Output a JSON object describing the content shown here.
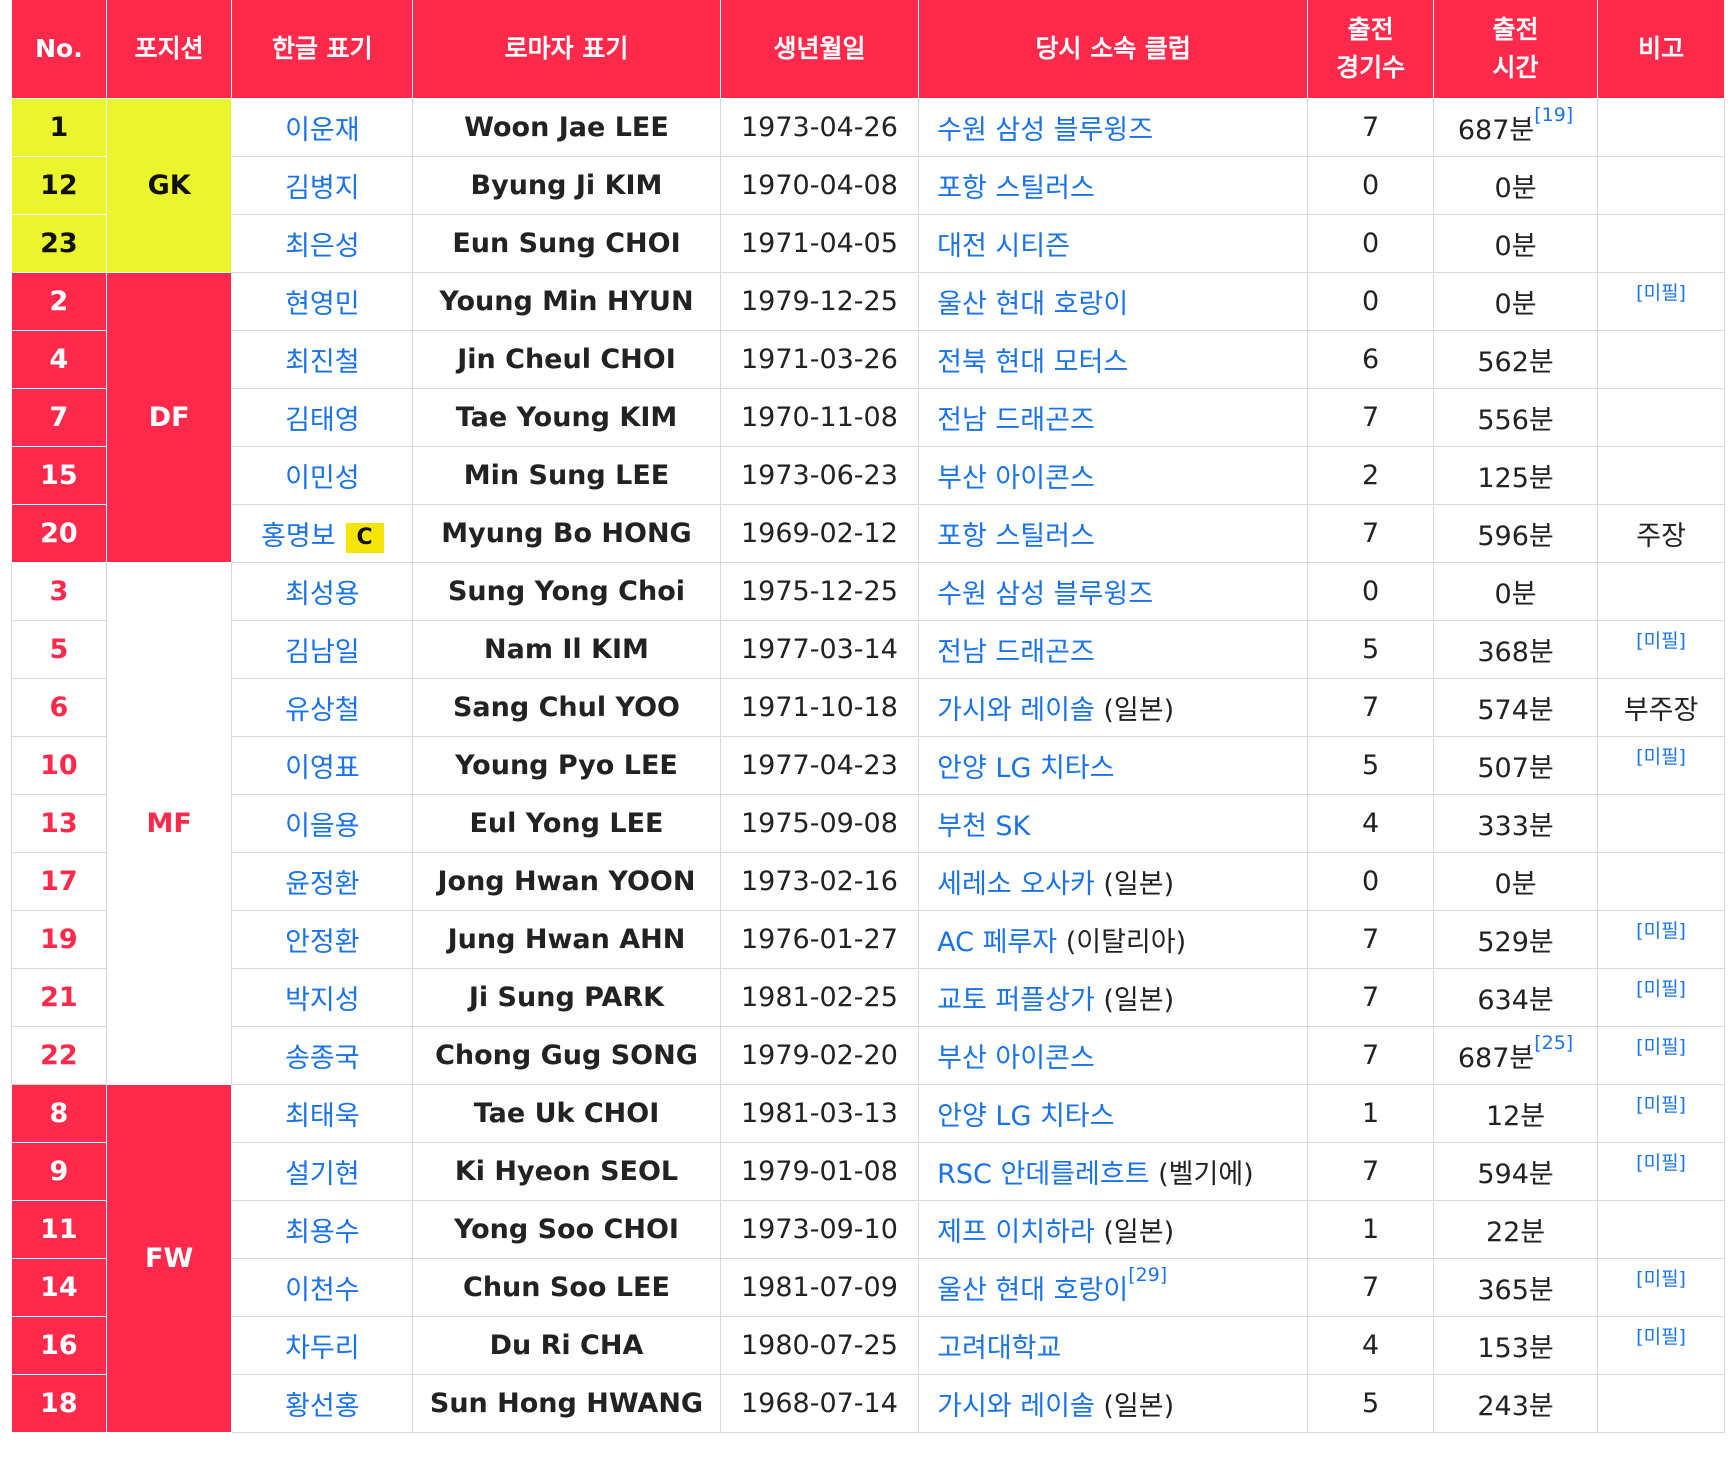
{
  "headers": {
    "no": "No.",
    "position": "포지션",
    "korean": "한글 표기",
    "roman": "로마자 표기",
    "birth": "생년월일",
    "club": "당시 소속 클럽",
    "apps_1": "출전",
    "apps_2": "경기수",
    "time_1": "출전",
    "time_2": "시간",
    "note": "비고"
  },
  "positions": {
    "gk": "GK",
    "df": "DF",
    "mf": "MF",
    "fw": "FW"
  },
  "captain_badge": "C",
  "rows": [
    {
      "no": "1",
      "korean": "이운재",
      "roman": "Woon Jae LEE",
      "birth": "1973-04-26",
      "club": "수원 삼성 블루윙즈",
      "club_extra": "",
      "club_ref": "",
      "apps": "7",
      "time": "687분",
      "time_ref": "[19]",
      "note": "",
      "note_ref": ""
    },
    {
      "no": "12",
      "korean": "김병지",
      "roman": "Byung Ji KIM",
      "birth": "1970-04-08",
      "club": "포항 스틸러스",
      "club_extra": "",
      "club_ref": "",
      "apps": "0",
      "time": "0분",
      "time_ref": "",
      "note": "",
      "note_ref": ""
    },
    {
      "no": "23",
      "korean": "최은성",
      "roman": "Eun Sung CHOI",
      "birth": "1971-04-05",
      "club": "대전 시티즌",
      "club_extra": "",
      "club_ref": "",
      "apps": "0",
      "time": "0분",
      "time_ref": "",
      "note": "",
      "note_ref": ""
    },
    {
      "no": "2",
      "korean": "현영민",
      "roman": "Young Min HYUN",
      "birth": "1979-12-25",
      "club": "울산 현대 호랑이",
      "club_extra": "",
      "club_ref": "",
      "apps": "0",
      "time": "0분",
      "time_ref": "",
      "note": "",
      "note_ref": "[미필]"
    },
    {
      "no": "4",
      "korean": "최진철",
      "roman": "Jin Cheul CHOI",
      "birth": "1971-03-26",
      "club": "전북 현대 모터스",
      "club_extra": "",
      "club_ref": "",
      "apps": "6",
      "time": "562분",
      "time_ref": "",
      "note": "",
      "note_ref": ""
    },
    {
      "no": "7",
      "korean": "김태영",
      "roman": "Tae Young KIM",
      "birth": "1970-11-08",
      "club": "전남 드래곤즈",
      "club_extra": "",
      "club_ref": "",
      "apps": "7",
      "time": "556분",
      "time_ref": "",
      "note": "",
      "note_ref": ""
    },
    {
      "no": "15",
      "korean": "이민성",
      "roman": "Min Sung LEE",
      "birth": "1973-06-23",
      "club": "부산 아이콘스",
      "club_extra": "",
      "club_ref": "",
      "apps": "2",
      "time": "125분",
      "time_ref": "",
      "note": "",
      "note_ref": ""
    },
    {
      "no": "20",
      "korean": "홍명보",
      "roman": "Myung Bo HONG",
      "birth": "1969-02-12",
      "club": "포항 스틸러스",
      "club_extra": "",
      "club_ref": "",
      "apps": "7",
      "time": "596분",
      "time_ref": "",
      "note": "주장",
      "note_ref": ""
    },
    {
      "no": "3",
      "korean": "최성용",
      "roman": "Sung Yong Choi",
      "birth": "1975-12-25",
      "club": "수원 삼성 블루윙즈",
      "club_extra": "",
      "club_ref": "",
      "apps": "0",
      "time": "0분",
      "time_ref": "",
      "note": "",
      "note_ref": ""
    },
    {
      "no": "5",
      "korean": "김남일",
      "roman": "Nam Il KIM",
      "birth": "1977-03-14",
      "club": "전남 드래곤즈",
      "club_extra": "",
      "club_ref": "",
      "apps": "5",
      "time": "368분",
      "time_ref": "",
      "note": "",
      "note_ref": "[미필]"
    },
    {
      "no": "6",
      "korean": "유상철",
      "roman": "Sang Chul YOO",
      "birth": "1971-10-18",
      "club": "가시와 레이솔",
      "club_extra": "(일본)",
      "club_ref": "",
      "apps": "7",
      "time": "574분",
      "time_ref": "",
      "note": "부주장",
      "note_ref": ""
    },
    {
      "no": "10",
      "korean": "이영표",
      "roman": "Young Pyo LEE",
      "birth": "1977-04-23",
      "club": "안양 LG 치타스",
      "club_extra": "",
      "club_ref": "",
      "apps": "5",
      "time": "507분",
      "time_ref": "",
      "note": "",
      "note_ref": "[미필]"
    },
    {
      "no": "13",
      "korean": "이을용",
      "roman": "Eul Yong LEE",
      "birth": "1975-09-08",
      "club": "부천 SK",
      "club_extra": "",
      "club_ref": "",
      "apps": "4",
      "time": "333분",
      "time_ref": "",
      "note": "",
      "note_ref": ""
    },
    {
      "no": "17",
      "korean": "윤정환",
      "roman": "Jong Hwan YOON",
      "birth": "1973-02-16",
      "club": "세레소 오사카",
      "club_extra": "(일본)",
      "club_ref": "",
      "apps": "0",
      "time": "0분",
      "time_ref": "",
      "note": "",
      "note_ref": ""
    },
    {
      "no": "19",
      "korean": "안정환",
      "roman": "Jung Hwan AHN",
      "birth": "1976-01-27",
      "club": "AC 페루자",
      "club_extra": "(이탈리아)",
      "club_ref": "",
      "apps": "7",
      "time": "529분",
      "time_ref": "",
      "note": "",
      "note_ref": "[미필]"
    },
    {
      "no": "21",
      "korean": "박지성",
      "roman": "Ji Sung PARK",
      "birth": "1981-02-25",
      "club": "교토 퍼플상가",
      "club_extra": "(일본)",
      "club_ref": "",
      "apps": "7",
      "time": "634분",
      "time_ref": "",
      "note": "",
      "note_ref": "[미필]"
    },
    {
      "no": "22",
      "korean": "송종국",
      "roman": "Chong Gug SONG",
      "birth": "1979-02-20",
      "club": "부산 아이콘스",
      "club_extra": "",
      "club_ref": "",
      "apps": "7",
      "time": "687분",
      "time_ref": "[25]",
      "note": "",
      "note_ref": "[미필]"
    },
    {
      "no": "8",
      "korean": "최태욱",
      "roman": "Tae Uk CHOI",
      "birth": "1981-03-13",
      "club": "안양 LG 치타스",
      "club_extra": "",
      "club_ref": "",
      "apps": "1",
      "time": "12분",
      "time_ref": "",
      "note": "",
      "note_ref": "[미필]"
    },
    {
      "no": "9",
      "korean": "설기현",
      "roman": "Ki Hyeon SEOL",
      "birth": "1979-01-08",
      "club": "RSC 안데를레흐트",
      "club_extra": "(벨기에)",
      "club_ref": "",
      "apps": "7",
      "time": "594분",
      "time_ref": "",
      "note": "",
      "note_ref": "[미필]"
    },
    {
      "no": "11",
      "korean": "최용수",
      "roman": "Yong Soo CHOI",
      "birth": "1973-09-10",
      "club": "제프 이치하라",
      "club_extra": "(일본)",
      "club_ref": "",
      "apps": "1",
      "time": "22분",
      "time_ref": "",
      "note": "",
      "note_ref": ""
    },
    {
      "no": "14",
      "korean": "이천수",
      "roman": "Chun Soo LEE",
      "birth": "1981-07-09",
      "club": "울산 현대 호랑이",
      "club_extra": "",
      "club_ref": "[29]",
      "apps": "7",
      "time": "365분",
      "time_ref": "",
      "note": "",
      "note_ref": "[미필]"
    },
    {
      "no": "16",
      "korean": "차두리",
      "roman": "Du Ri CHA",
      "birth": "1980-07-25",
      "club": "고려대학교",
      "club_extra": "",
      "club_ref": "",
      "apps": "4",
      "time": "153분",
      "time_ref": "",
      "note": "",
      "note_ref": "[미필]"
    },
    {
      "no": "18",
      "korean": "황선홍",
      "roman": "Sun Hong HWANG",
      "birth": "1968-07-14",
      "club": "가시와 레이솔",
      "club_extra": "(일본)",
      "club_ref": "",
      "apps": "5",
      "time": "243분",
      "time_ref": "",
      "note": "",
      "note_ref": ""
    }
  ]
}
